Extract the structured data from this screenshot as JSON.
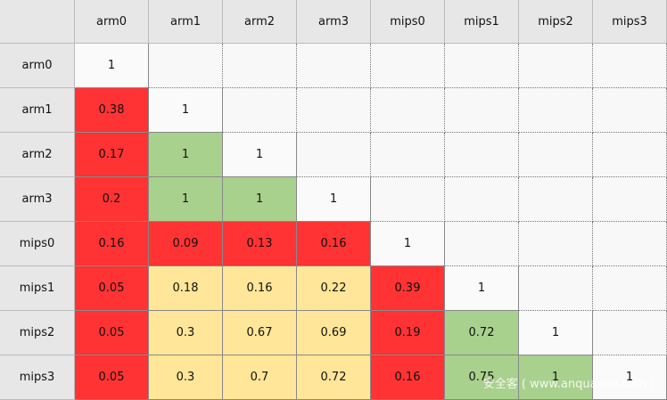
{
  "table": {
    "columns": [
      "arm0",
      "arm1",
      "arm2",
      "arm3",
      "mips0",
      "mips1",
      "mips2",
      "mips3"
    ],
    "rows": [
      {
        "label": "arm0",
        "cells": [
          {
            "text": "1",
            "color": "#fafafa"
          }
        ]
      },
      {
        "label": "arm1",
        "cells": [
          {
            "text": "0.38",
            "color": "#ff3333"
          },
          {
            "text": "1",
            "color": "#fafafa"
          }
        ]
      },
      {
        "label": "arm2",
        "cells": [
          {
            "text": "0.17",
            "color": "#ff3333"
          },
          {
            "text": "1",
            "color": "#a9d18e"
          },
          {
            "text": "1",
            "color": "#fafafa"
          }
        ]
      },
      {
        "label": "arm3",
        "cells": [
          {
            "text": "0.2",
            "color": "#ff3333"
          },
          {
            "text": "1",
            "color": "#a9d18e"
          },
          {
            "text": "1",
            "color": "#a9d18e"
          },
          {
            "text": "1",
            "color": "#fafafa"
          }
        ]
      },
      {
        "label": "mips0",
        "cells": [
          {
            "text": "0.16",
            "color": "#ff3333"
          },
          {
            "text": "0.09",
            "color": "#ff3333"
          },
          {
            "text": "0.13",
            "color": "#ff3333"
          },
          {
            "text": "0.16",
            "color": "#ff3333"
          },
          {
            "text": "1",
            "color": "#fafafa"
          }
        ]
      },
      {
        "label": "mips1",
        "cells": [
          {
            "text": "0.05",
            "color": "#ff3333"
          },
          {
            "text": "0.18",
            "color": "#ffe699"
          },
          {
            "text": "0.16",
            "color": "#ffe699"
          },
          {
            "text": "0.22",
            "color": "#ffe699"
          },
          {
            "text": "0.39",
            "color": "#ff3333"
          },
          {
            "text": "1",
            "color": "#fafafa"
          }
        ]
      },
      {
        "label": "mips2",
        "cells": [
          {
            "text": "0.05",
            "color": "#ff3333"
          },
          {
            "text": "0.3",
            "color": "#ffe699"
          },
          {
            "text": "0.67",
            "color": "#ffe699"
          },
          {
            "text": "0.69",
            "color": "#ffe699"
          },
          {
            "text": "0.19",
            "color": "#ff3333"
          },
          {
            "text": "0.72",
            "color": "#a9d18e"
          },
          {
            "text": "1",
            "color": "#fafafa"
          }
        ]
      },
      {
        "label": "mips3",
        "cells": [
          {
            "text": "0.05",
            "color": "#ff3333"
          },
          {
            "text": "0.3",
            "color": "#ffe699"
          },
          {
            "text": "0.7",
            "color": "#ffe699"
          },
          {
            "text": "0.72",
            "color": "#ffe699"
          },
          {
            "text": "0.16",
            "color": "#ff3333"
          },
          {
            "text": "0.75",
            "color": "#a9d18e"
          },
          {
            "text": "1",
            "color": "#a9d18e"
          },
          {
            "text": "1",
            "color": "#fafafa"
          }
        ]
      }
    ]
  },
  "watermark": "安全客 ( www.anquanke.com )"
}
